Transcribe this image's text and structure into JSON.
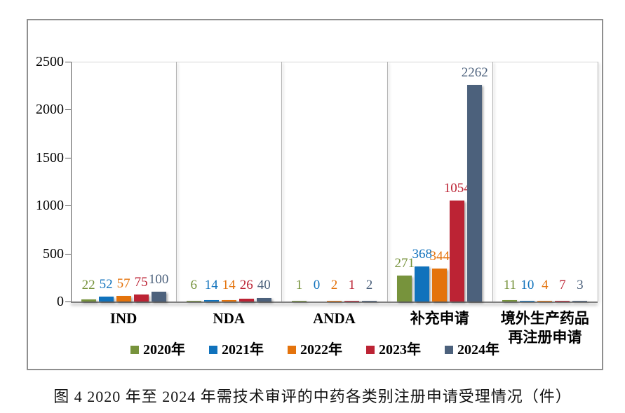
{
  "caption": "图 4  2020 年至 2024 年需技术审评的中药各类别注册申请受理情况（件）",
  "chart_data": {
    "type": "bar",
    "title": "",
    "xlabel": "",
    "ylabel": "",
    "ylim": [
      0,
      2500
    ],
    "yticks": [
      0,
      500,
      1000,
      1500,
      2000,
      2500
    ],
    "grid": "vertical-category-dividers",
    "legend_position": "bottom",
    "categories": [
      {
        "key": "ind",
        "label_lines": [
          "IND"
        ]
      },
      {
        "key": "nda",
        "label_lines": [
          "NDA"
        ]
      },
      {
        "key": "anda",
        "label_lines": [
          "ANDA"
        ]
      },
      {
        "key": "supplement",
        "label_lines": [
          "补充申请"
        ]
      },
      {
        "key": "overseas-reregistration",
        "label_lines": [
          "境外生产药品",
          "再注册申请"
        ]
      }
    ],
    "series": [
      {
        "key": "2020",
        "name": "2020年",
        "color": "#77933C",
        "values": [
          22,
          6,
          1,
          271,
          11
        ]
      },
      {
        "key": "2021",
        "name": "2021年",
        "color": "#1072BC",
        "values": [
          52,
          14,
          0,
          368,
          10
        ]
      },
      {
        "key": "2022",
        "name": "2022年",
        "color": "#E4730C",
        "values": [
          57,
          14,
          2,
          344,
          4
        ]
      },
      {
        "key": "2023",
        "name": "2023年",
        "color": "#BC2334",
        "values": [
          75,
          26,
          1,
          1054,
          7
        ]
      },
      {
        "key": "2024",
        "name": "2024年",
        "color": "#4C617C",
        "values": [
          100,
          40,
          2,
          2262,
          3
        ]
      }
    ]
  }
}
